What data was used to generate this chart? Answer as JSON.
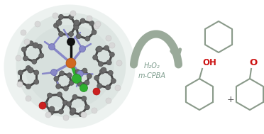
{
  "bg_color": "#ffffff",
  "arrow_color": "#9aaa9a",
  "mol_line_color": "#8a9a8a",
  "oh_color": "#cc1111",
  "o_color": "#cc1111",
  "plus_color": "#555555",
  "reagent_text_line1": "H₂O₂",
  "reagent_text_line2": "m-CPBA",
  "reagent_color": "#7a9a8a",
  "reagent_fontsize": 7.0,
  "plus_fontsize": 9,
  "mol_lw": 1.6,
  "label_fontsize": 8.5,
  "glow_color": "#c8d4d0",
  "glow_color2": "#dde6e3",
  "fig_width": 3.72,
  "fig_height": 1.89,
  "fig_dpi": 100,
  "dark_atom": "#484848",
  "blue_n": "#8888c8",
  "green_cl": "#30b030",
  "orange_fe": "#d06820",
  "red_o": "#cc2020",
  "white_h": "#d8d8d8",
  "black_n": "#111111"
}
